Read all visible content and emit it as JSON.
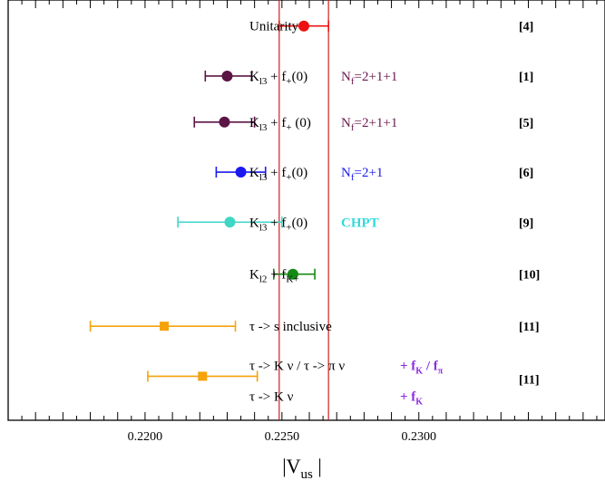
{
  "chart_data": {
    "type": "scatter",
    "title": "",
    "xlabel": "|V_us|",
    "xlabel_parts": {
      "pre": "|V",
      "sub": "us",
      "post": " |"
    },
    "xlim": [
      0.215,
      0.2368
    ],
    "ylim": [
      0.5,
      11.0
    ],
    "x_tick_labels": [
      "0.2200",
      "0.2250",
      "0.2300"
    ],
    "x_tick_values": [
      0.22,
      0.225,
      0.23
    ],
    "grid": false,
    "band": {
      "low": 0.2249,
      "high": 0.2267,
      "color": "#cc1f1f"
    },
    "entries": [
      {
        "y": 10.35,
        "value": 0.2258,
        "err_low": 0.0009,
        "err_high": 0.0009,
        "marker": "circle",
        "color": "#ee1111",
        "label_text": "Unitarity",
        "ref": "[4]"
      },
      {
        "y": 9.1,
        "value": 0.223,
        "err_low": 0.0008,
        "err_high": 0.0009,
        "marker": "circle",
        "color": "#5c1545",
        "label_prefix": "K",
        "label_prefix_sub": "l3",
        "label_mid": " + f",
        "label_mid_sub": "+",
        "label_after": "(0)",
        "note": "N",
        "note_sub": "f",
        "note_rest": "=2+1+1",
        "note_color": "#6b1a50",
        "ref": "[1]"
      },
      {
        "y": 7.95,
        "value": 0.2229,
        "err_low": 0.0011,
        "err_high": 0.0011,
        "marker": "circle",
        "color": "#5c1545",
        "label_prefix": "K",
        "label_prefix_sub": "l3",
        "label_mid": " + f",
        "label_mid_sub": "+",
        "label_after": " (0)",
        "note": "N",
        "note_sub": "f",
        "note_rest": "=2+1+1",
        "note_color": "#6b1a50",
        "ref": "[5]"
      },
      {
        "y": 6.7,
        "value": 0.2235,
        "err_low": 0.0009,
        "err_high": 0.0009,
        "marker": "circle",
        "color": "#1a1aee",
        "label_prefix": "K",
        "label_prefix_sub": "l3",
        "label_mid": " + f",
        "label_mid_sub": "+",
        "label_after": "(0)",
        "note": "N",
        "note_sub": "f",
        "note_rest": "=2+1",
        "note_color": "#1a1aee",
        "ref": "[6]"
      },
      {
        "y": 5.45,
        "value": 0.2231,
        "err_low": 0.0019,
        "err_high": 0.0019,
        "marker": "circle",
        "color": "#3fd6c6",
        "label_prefix": "K",
        "label_prefix_sub": "l3",
        "label_mid": " + f",
        "label_mid_sub": "+",
        "label_after": "(0)",
        "note_bold": "CHPT",
        "note_color": "#33d9dd",
        "ref": "[9]"
      },
      {
        "y": 4.15,
        "value": 0.2254,
        "err_low": 0.0007,
        "err_high": 0.0008,
        "marker": "circle",
        "color": "#148a14",
        "label_prefix": "K",
        "label_prefix_sub": "l2",
        "label_mid": " + f",
        "label_mid_sub": "K+",
        "label_after": "",
        "ref": "[10]"
      },
      {
        "y": 2.85,
        "value": 0.2207,
        "err_low": 0.0027,
        "err_high": 0.0026,
        "marker": "square",
        "color": "#f5a30a",
        "label_text": "τ  -> s inclusive",
        "ref": "[11]"
      },
      {
        "y": 1.6,
        "value": 0.2221,
        "err_low": 0.002,
        "err_high": 0.002,
        "marker": "square",
        "color": "#f5a30a",
        "label_line1": "τ  -> K ν / τ -> π ν",
        "label_line1_note": "+ f",
        "label_line1_note_sub": "K",
        "label_line1_note_tail": " / f",
        "label_line1_note_sub2": "π",
        "label_line2": "τ  -> K ν",
        "label_line2_note": "+ f",
        "label_line2_note_sub": "K",
        "note_color": "#8a2be2",
        "ref": "[11]"
      }
    ]
  }
}
